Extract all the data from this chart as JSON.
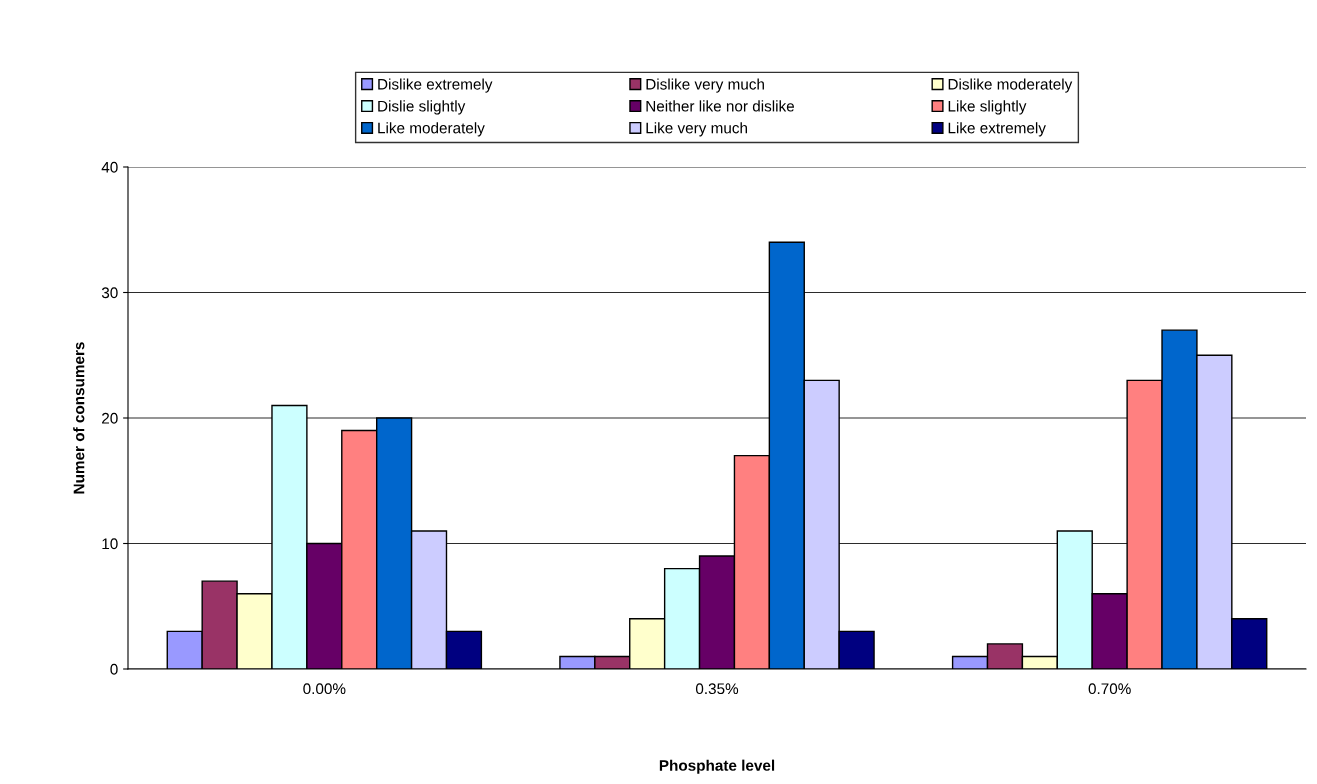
{
  "chart_data": {
    "type": "bar",
    "xlabel": "Phosphate level",
    "ylabel": "Numer of consumers",
    "categories": [
      "0.00%",
      "0.35%",
      "0.70%"
    ],
    "series": [
      {
        "name": "Dislike extremely",
        "color": "#9999ff",
        "values": [
          3,
          1,
          1
        ]
      },
      {
        "name": "Dislike very much",
        "color": "#993366",
        "values": [
          7,
          1,
          2
        ]
      },
      {
        "name": "Dislike moderately",
        "color": "#ffffcc",
        "values": [
          6,
          4,
          1
        ]
      },
      {
        "name": "Dislie slightly",
        "color": "#ccffff",
        "values": [
          21,
          8,
          11
        ]
      },
      {
        "name": "Neither like nor dislike",
        "color": "#660066",
        "values": [
          10,
          9,
          6
        ]
      },
      {
        "name": "Like slightly",
        "color": "#ff8080",
        "values": [
          19,
          17,
          23
        ]
      },
      {
        "name": "Like moderately",
        "color": "#0066cc",
        "values": [
          20,
          34,
          27
        ]
      },
      {
        "name": "Like very much",
        "color": "#ccccff",
        "values": [
          11,
          23,
          25
        ]
      },
      {
        "name": "Like extremely",
        "color": "#000080",
        "values": [
          3,
          3,
          4
        ]
      }
    ],
    "ylim": [
      0,
      40
    ],
    "yticks": [
      0,
      10,
      20,
      30,
      40
    ],
    "grid": "y",
    "legend": "top"
  }
}
